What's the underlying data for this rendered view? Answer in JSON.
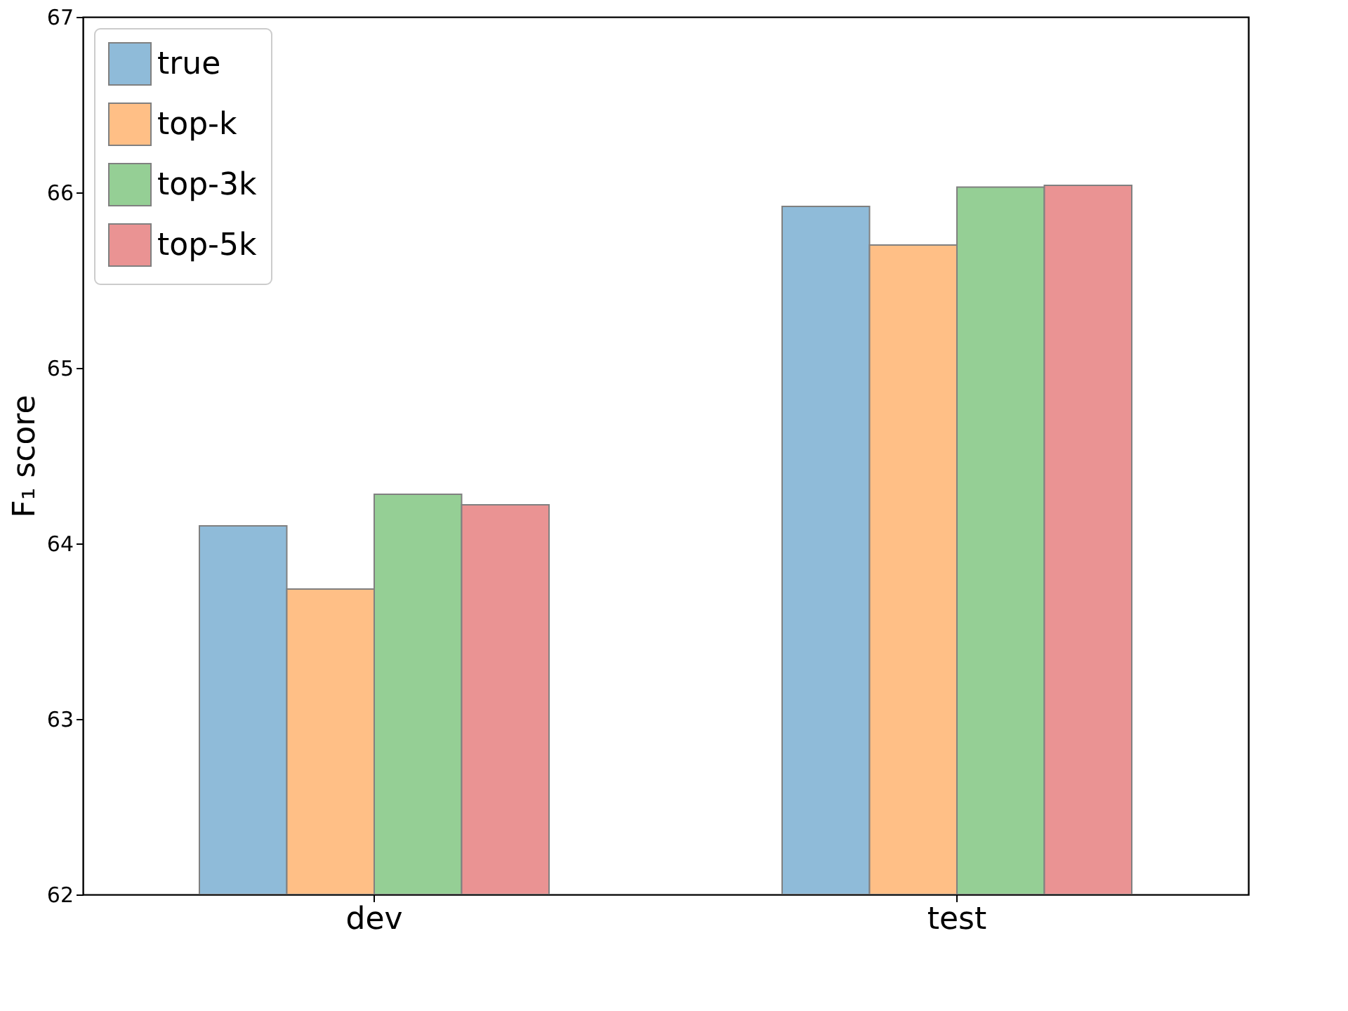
{
  "chart_data": {
    "type": "bar",
    "ylabel": "F₁ score",
    "categories": [
      "dev",
      "test"
    ],
    "series": [
      {
        "name": "true",
        "color": "#8fbbd9",
        "values": [
          64.1,
          65.92
        ]
      },
      {
        "name": "top-k",
        "color": "#ffbf86",
        "values": [
          63.74,
          65.7
        ]
      },
      {
        "name": "top-3k",
        "color": "#95cf95",
        "values": [
          64.28,
          66.03
        ]
      },
      {
        "name": "top-5k",
        "color": "#ea9393",
        "values": [
          64.22,
          66.04
        ]
      }
    ],
    "ylim": [
      62,
      67
    ],
    "yticks": [
      62,
      63,
      64,
      65,
      66,
      67
    ],
    "legend": "top left",
    "grid": false
  }
}
